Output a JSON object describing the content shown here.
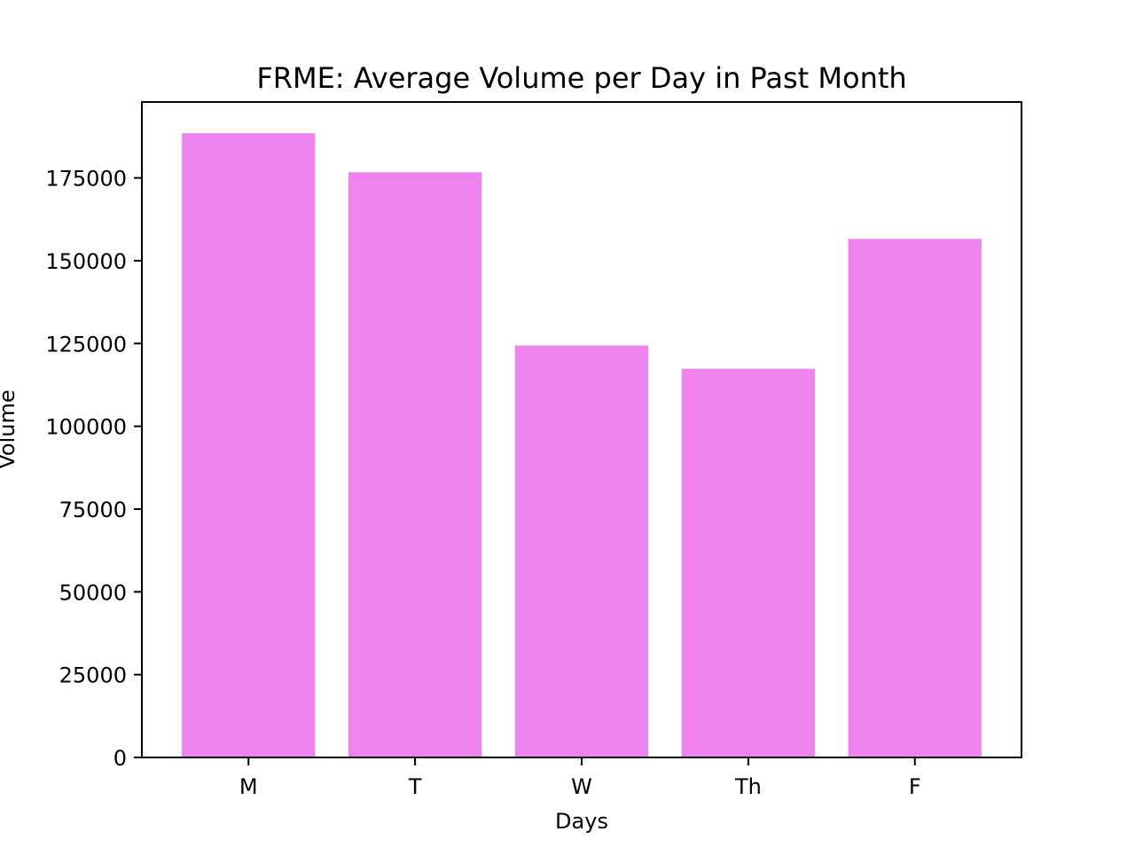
{
  "chart_data": {
    "type": "bar",
    "title": "FRME: Average Volume per Day in Past Month",
    "xlabel": "Days",
    "ylabel": "Volume",
    "categories": [
      "M",
      "T",
      "W",
      "Th",
      "F"
    ],
    "values": [
      188500,
      176700,
      124400,
      117400,
      156600
    ],
    "ylim": [
      0,
      197925
    ],
    "yticks": [
      0,
      25000,
      50000,
      75000,
      100000,
      125000,
      150000,
      175000
    ],
    "ytick_labels": [
      "0",
      "25000",
      "50000",
      "75000",
      "100000",
      "125000",
      "150000",
      "175000"
    ],
    "bar_color": "#ee82ee",
    "grid": false,
    "legend": "none"
  }
}
